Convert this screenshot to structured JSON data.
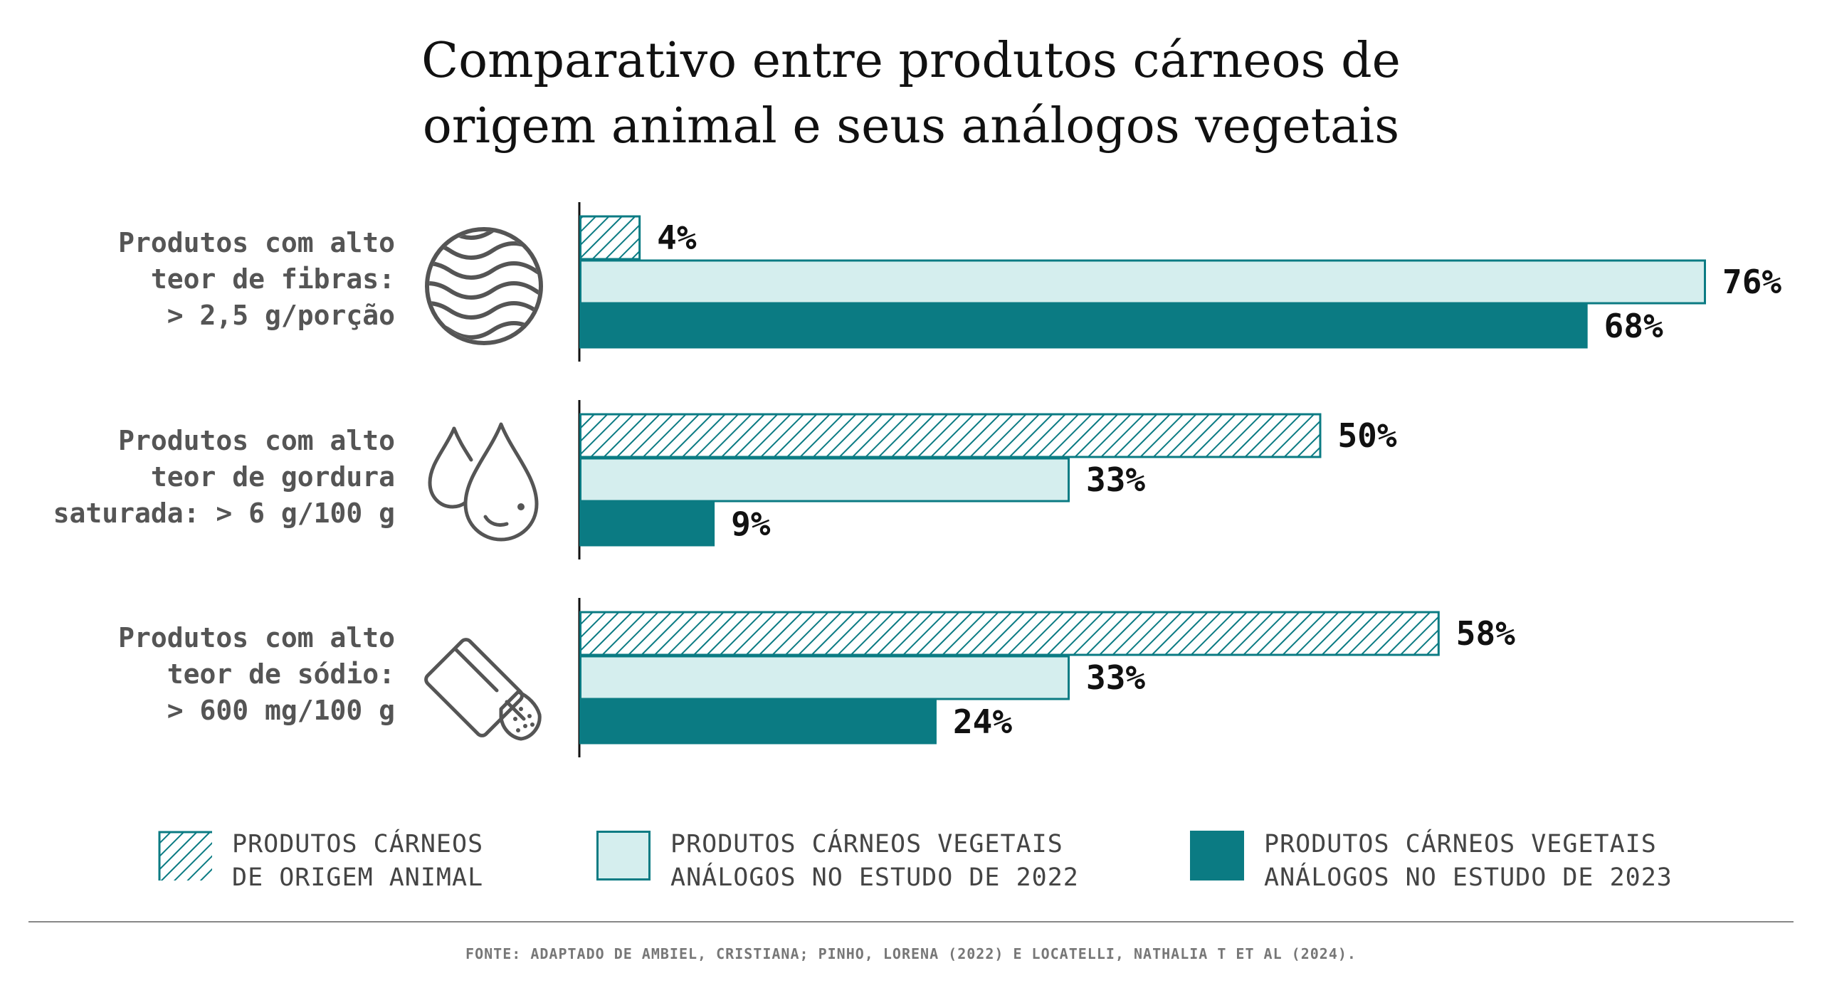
{
  "title": {
    "line1": "Comparativo entre produtos cárneos de",
    "line2": "origem animal e seus análogos vegetais"
  },
  "categories": [
    {
      "line1": "Produtos com alto",
      "line2": "teor de fibras:",
      "line3": "> 2,5 g/porção",
      "icon": "fiber-icon"
    },
    {
      "line1": "Produtos com alto",
      "line2": "teor de gordura",
      "line3": "saturada: > 6 g/100 g",
      "icon": "fat-drops-icon"
    },
    {
      "line1": "Produtos com alto",
      "line2": "teor de sódio:",
      "line3": "> 600 mg/100 g",
      "icon": "salt-shaker-icon"
    }
  ],
  "chart_data": {
    "type": "bar",
    "orientation": "horizontal",
    "categories": [
      "Produtos com alto teor de fibras: > 2,5 g/porção",
      "Produtos com alto teor de gordura saturada: > 6 g/100 g",
      "Produtos com alto teor de sódio: > 600 mg/100 g"
    ],
    "series": [
      {
        "name": "PRODUTOS CÁRNEOS DE ORIGEM ANIMAL",
        "values": [
          4,
          50,
          58
        ],
        "labels": [
          "4%",
          "50%",
          "58%"
        ],
        "style": "hatched",
        "color": "#0b7b83"
      },
      {
        "name": "PRODUTOS CÁRNEOS VEGETAIS ANÁLOGOS NO ESTUDO DE 2022",
        "values": [
          76,
          33,
          33
        ],
        "labels": [
          "76%",
          "33%",
          "33%"
        ],
        "style": "light",
        "color": "#d5eeee"
      },
      {
        "name": "PRODUTOS CÁRNEOS VEGETAIS ANÁLOGOS NO ESTUDO DE 2023",
        "values": [
          68,
          9,
          24
        ],
        "labels": [
          "68%",
          "9%",
          "24%"
        ],
        "style": "solid",
        "color": "#0b7b83"
      }
    ],
    "unit": "%",
    "xlim": [
      0,
      76
    ],
    "grid": false,
    "legend_position": "bottom"
  },
  "legend": [
    {
      "line1": "PRODUTOS CÁRNEOS",
      "line2": "DE ORIGEM ANIMAL"
    },
    {
      "line1": "PRODUTOS CÁRNEOS VEGETAIS",
      "line2": "ANÁLOGOS NO ESTUDO DE 2022"
    },
    {
      "line1": "PRODUTOS CÁRNEOS VEGETAIS",
      "line2": "ANÁLOGOS NO ESTUDO DE 2023"
    }
  ],
  "colors": {
    "teal": "#0b7b83",
    "light_teal": "#d5eeee",
    "label_gray": "#555555",
    "icon_gray": "#555555"
  },
  "source": "FONTE: ADAPTADO DE AMBIEL, CRISTIANA; PINHO, LORENA (2022) E LOCATELLI, NATHALIA T ET AL (2024)."
}
